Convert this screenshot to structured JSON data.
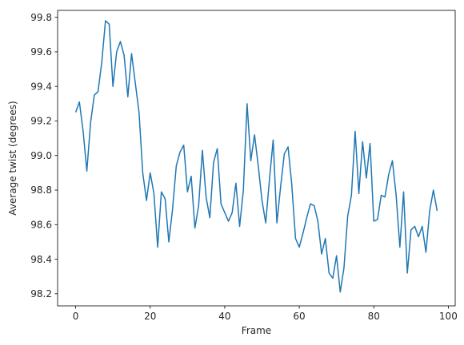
{
  "chart_data": {
    "type": "line",
    "title": "",
    "xlabel": "Frame",
    "ylabel": "Average twist (degrees)",
    "xlim": [
      -4.85,
      101.85
    ],
    "ylim": [
      98.13,
      99.84
    ],
    "xticks": [
      0,
      20,
      40,
      60,
      80,
      100
    ],
    "xtick_labels": [
      "0",
      "20",
      "40",
      "60",
      "80",
      "100"
    ],
    "yticks": [
      98.2,
      98.4,
      98.6,
      98.8,
      99.0,
      99.2,
      99.4,
      99.6,
      99.8
    ],
    "ytick_labels": [
      "98.2",
      "98.4",
      "98.6",
      "98.8",
      "99.0",
      "99.2",
      "99.4",
      "99.6",
      "99.8"
    ],
    "grid": false,
    "line_color": "#1f77b4",
    "series": [
      {
        "x": [
          0,
          1,
          2,
          3,
          4,
          5,
          6,
          7,
          8,
          9,
          10,
          11,
          12,
          13,
          14,
          15,
          16,
          17,
          18,
          19,
          20,
          21,
          22,
          23,
          24,
          25,
          26,
          27,
          28,
          29,
          30,
          31,
          32,
          33,
          34,
          35,
          36,
          37,
          38,
          39,
          40,
          41,
          42,
          43,
          44,
          45,
          46,
          47,
          48,
          49,
          50,
          51,
          52,
          53,
          54,
          55,
          56,
          57,
          58,
          59,
          60,
          61,
          62,
          63,
          64,
          65,
          66,
          67,
          68,
          69,
          70,
          71,
          72,
          73,
          74,
          75,
          76,
          77,
          78,
          79,
          80,
          81,
          82,
          83,
          84,
          85,
          86,
          87,
          88,
          89,
          90,
          91,
          92,
          93,
          94,
          95,
          96,
          97
        ],
        "values": [
          99.25,
          99.31,
          99.14,
          98.91,
          99.19,
          99.35,
          99.37,
          99.54,
          99.78,
          99.76,
          99.4,
          99.6,
          99.66,
          99.58,
          99.34,
          99.59,
          99.42,
          99.25,
          98.9,
          98.74,
          98.9,
          98.78,
          98.47,
          98.79,
          98.75,
          98.5,
          98.69,
          98.94,
          99.02,
          99.06,
          98.79,
          98.88,
          98.58,
          98.71,
          99.03,
          98.76,
          98.64,
          98.96,
          99.04,
          98.72,
          98.67,
          98.62,
          98.67,
          98.84,
          98.59,
          98.8,
          99.3,
          98.97,
          99.12,
          98.94,
          98.74,
          98.61,
          98.86,
          99.09,
          98.61,
          98.82,
          99.01,
          99.05,
          98.83,
          98.52,
          98.47,
          98.55,
          98.64,
          98.72,
          98.71,
          98.62,
          98.43,
          98.52,
          98.32,
          98.29,
          98.42,
          98.21,
          98.35,
          98.65,
          98.77,
          99.14,
          98.78,
          99.08,
          98.87,
          99.07,
          98.62,
          98.63,
          98.77,
          98.76,
          98.89,
          98.97,
          98.77,
          98.47,
          98.79,
          98.32,
          98.57,
          98.59,
          98.53,
          98.59,
          98.44,
          98.68,
          98.8,
          98.68
        ]
      }
    ]
  }
}
